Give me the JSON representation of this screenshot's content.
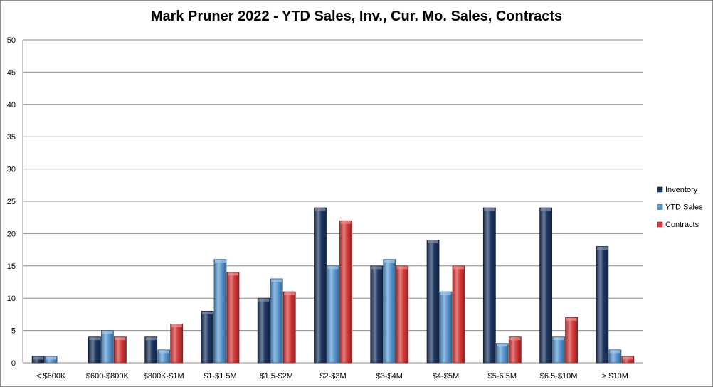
{
  "chart_data": {
    "type": "bar",
    "title": "Mark Pruner 2022 - YTD Sales, Inv., Cur. Mo. Sales, Contracts",
    "xlabel": "",
    "ylabel": "",
    "ylim": [
      0,
      50
    ],
    "yticks": [
      0,
      5,
      10,
      15,
      20,
      25,
      30,
      35,
      40,
      45,
      50
    ],
    "grid": true,
    "legend_position": "right",
    "categories": [
      "< $600K",
      "$600-$800K",
      "$800K-$1M",
      "$1-$1.5M",
      "$1.5-$2M",
      "$2-$3M",
      "$3-$4M",
      "$4-$5M",
      "$5-6.5M",
      "$6.5-$10M",
      "> $10M"
    ],
    "series": [
      {
        "name": "Inventory",
        "color": "#1f3864",
        "values": [
          1,
          4,
          4,
          8,
          10,
          24,
          15,
          19,
          24,
          24,
          18
        ]
      },
      {
        "name": "YTD Sales",
        "color": "#5b9bd5",
        "values": [
          1,
          5,
          2,
          16,
          13,
          15,
          16,
          11,
          3,
          4,
          2
        ]
      },
      {
        "name": "Contracts",
        "color": "#d93a3a",
        "values": [
          0,
          4,
          6,
          14,
          11,
          22,
          15,
          15,
          4,
          7,
          1
        ]
      }
    ]
  }
}
